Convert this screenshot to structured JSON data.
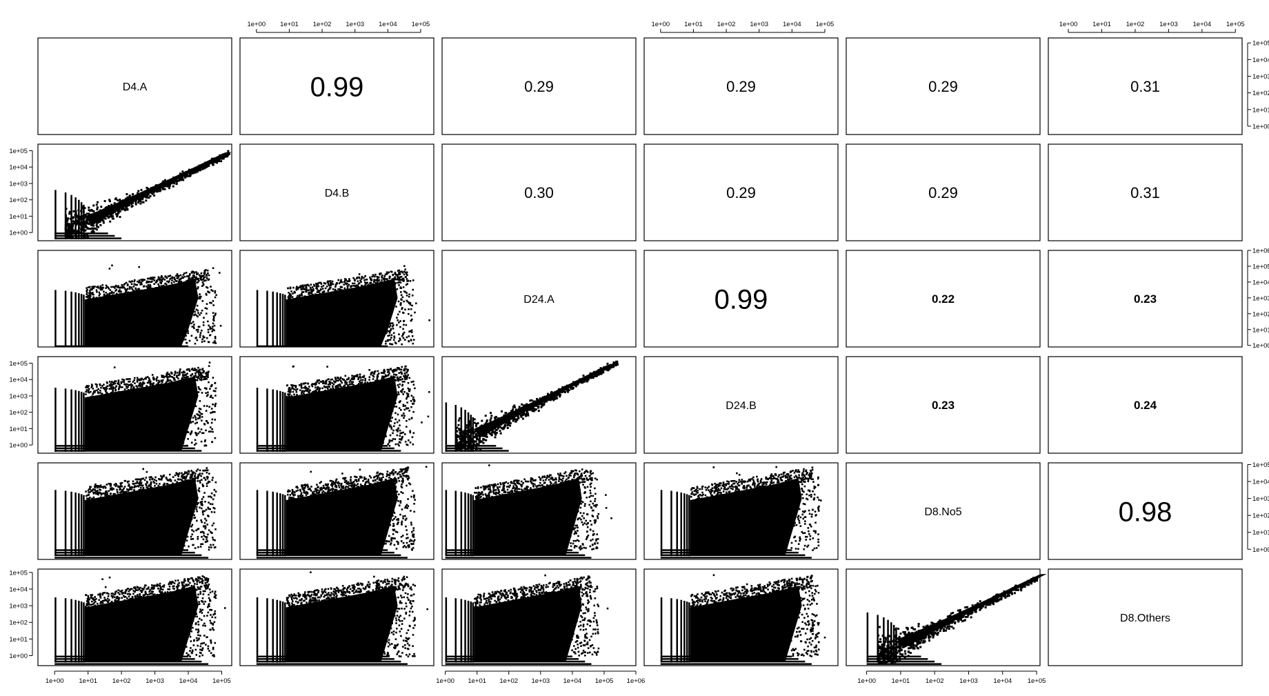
{
  "chart_data": {
    "type": "scatter",
    "title": "",
    "variables": [
      "D4.A",
      "D4.B",
      "D24.A",
      "D24.B",
      "D8.No5",
      "D8.Others"
    ],
    "axis_scale": "log10",
    "axis_ticks": [
      [
        "1e+00",
        "1e+01",
        "1e+02",
        "1e+03",
        "1e+04",
        "1e+05"
      ],
      [
        "1e+00",
        "1e+01",
        "1e+02",
        "1e+03",
        "1e+04",
        "1e+05"
      ],
      [
        "1e+00",
        "1e+01",
        "1e+02",
        "1e+03",
        "1e+04",
        "1e+05",
        "1e+06"
      ],
      [
        "1e+00",
        "1e+01",
        "1e+02",
        "1e+03",
        "1e+04",
        "1e+05"
      ],
      [
        "1e+00",
        "1e+01",
        "1e+02",
        "1e+03",
        "1e+04",
        "1e+05"
      ],
      [
        "1e+00",
        "1e+01",
        "1e+02",
        "1e+03",
        "1e+04",
        "1e+05"
      ]
    ],
    "axis_ranges_log10": [
      [
        -0.5,
        5.3
      ],
      [
        -0.5,
        5.4
      ],
      [
        -0.1,
        6.0
      ],
      [
        -0.5,
        5.4
      ],
      [
        -0.6,
        5.1
      ],
      [
        -0.6,
        5.2
      ]
    ],
    "upper_panel": "correlation",
    "lower_panel": "scatter",
    "correlations": [
      {
        "row": 0,
        "col": 1,
        "value": "0.99"
      },
      {
        "row": 0,
        "col": 2,
        "value": "0.29"
      },
      {
        "row": 0,
        "col": 3,
        "value": "0.29"
      },
      {
        "row": 0,
        "col": 4,
        "value": "0.29"
      },
      {
        "row": 0,
        "col": 5,
        "value": "0.31"
      },
      {
        "row": 1,
        "col": 2,
        "value": "0.30"
      },
      {
        "row": 1,
        "col": 3,
        "value": "0.29"
      },
      {
        "row": 1,
        "col": 4,
        "value": "0.29"
      },
      {
        "row": 1,
        "col": 5,
        "value": "0.31"
      },
      {
        "row": 2,
        "col": 3,
        "value": "0.99"
      },
      {
        "row": 2,
        "col": 4,
        "value": "0.22"
      },
      {
        "row": 2,
        "col": 5,
        "value": "0.23"
      },
      {
        "row": 3,
        "col": 4,
        "value": "0.23"
      },
      {
        "row": 3,
        "col": 5,
        "value": "0.24"
      },
      {
        "row": 4,
        "col": 5,
        "value": "0.98"
      }
    ]
  }
}
